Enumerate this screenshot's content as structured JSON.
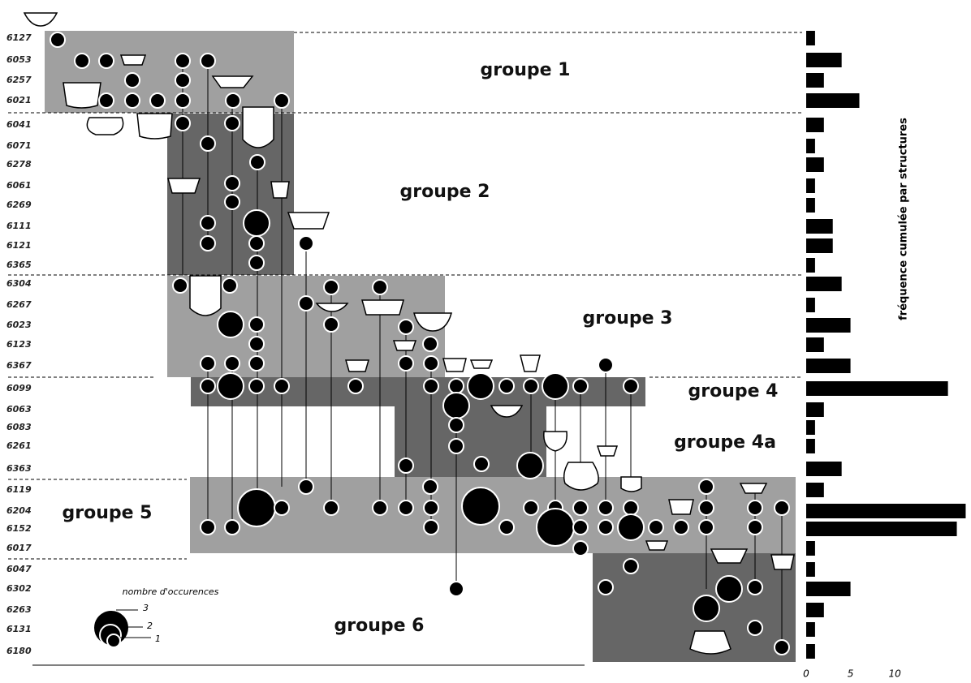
{
  "chart_data": {
    "type": "hbar",
    "categories": [
      "6127",
      "6053",
      "6257",
      "6021",
      "6041",
      "6071",
      "6278",
      "6061",
      "6269",
      "6111",
      "6121",
      "6365",
      "6304",
      "6267",
      "6023",
      "6123",
      "6367",
      "6099",
      "6063",
      "6083",
      "6261",
      "6363",
      "6119",
      "6204",
      "6152",
      "6017",
      "6047",
      "6302",
      "6263",
      "6131",
      "6180"
    ],
    "values": [
      1,
      4,
      2,
      6,
      2,
      1,
      2,
      1,
      1,
      3,
      3,
      1,
      4,
      1,
      5,
      2,
      5,
      16,
      2,
      1,
      1,
      4,
      2,
      18,
      17,
      1,
      1,
      5,
      2,
      1,
      1
    ],
    "color": "#000000",
    "xlim": [
      0,
      18.6
    ],
    "xticks": [
      0,
      5,
      10
    ],
    "xlabel": "fréquence cumulée par structures"
  },
  "groups": [
    "groupe 1",
    "groupe 2",
    "groupe 3",
    "groupe 4",
    "groupe 4a",
    "groupe 5",
    "groupe 6"
  ],
  "legend": {
    "title": "nombre d'occurences",
    "sizes": [
      3,
      2,
      1
    ]
  }
}
